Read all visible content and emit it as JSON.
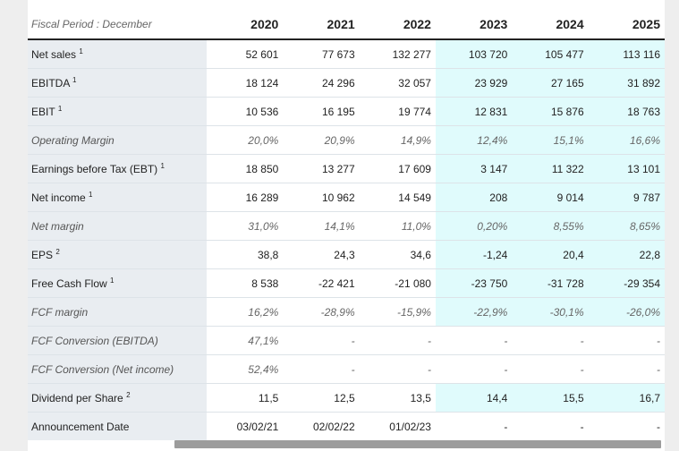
{
  "header": {
    "period_label": "Fiscal Period : December",
    "years": [
      "2020",
      "2021",
      "2022",
      "2023",
      "2024",
      "2025"
    ]
  },
  "rows": [
    {
      "label": "Net sales",
      "sup": "1",
      "italic": false,
      "est_from": 3,
      "values": [
        "52 601",
        "77 673",
        "132 277",
        "103 720",
        "105 477",
        "113 116"
      ]
    },
    {
      "label": "EBITDA",
      "sup": "1",
      "italic": false,
      "est_from": 3,
      "values": [
        "18 124",
        "24 296",
        "32 057",
        "23 929",
        "27 165",
        "31 892"
      ]
    },
    {
      "label": "EBIT",
      "sup": "1",
      "italic": false,
      "est_from": 3,
      "values": [
        "10 536",
        "16 195",
        "19 774",
        "12 831",
        "15 876",
        "18 763"
      ]
    },
    {
      "label": "Operating Margin",
      "sup": "",
      "italic": true,
      "est_from": 3,
      "values": [
        "20,0%",
        "20,9%",
        "14,9%",
        "12,4%",
        "15,1%",
        "16,6%"
      ]
    },
    {
      "label": "Earnings before Tax (EBT)",
      "sup": "1",
      "italic": false,
      "est_from": 3,
      "values": [
        "18 850",
        "13 277",
        "17 609",
        "3 147",
        "11 322",
        "13 101"
      ]
    },
    {
      "label": "Net income",
      "sup": "1",
      "italic": false,
      "est_from": 3,
      "values": [
        "16 289",
        "10 962",
        "14 549",
        "208",
        "9 014",
        "9 787"
      ]
    },
    {
      "label": "Net margin",
      "sup": "",
      "italic": true,
      "est_from": 3,
      "values": [
        "31,0%",
        "14,1%",
        "11,0%",
        "0,20%",
        "8,55%",
        "8,65%"
      ]
    },
    {
      "label": "EPS",
      "sup": "2",
      "italic": false,
      "est_from": 3,
      "values": [
        "38,8",
        "24,3",
        "34,6",
        "-1,24",
        "20,4",
        "22,8"
      ]
    },
    {
      "label": "Free Cash Flow",
      "sup": "1",
      "italic": false,
      "est_from": 3,
      "values": [
        "8 538",
        "-22 421",
        "-21 080",
        "-23 750",
        "-31 728",
        "-29 354"
      ]
    },
    {
      "label": "FCF margin",
      "sup": "",
      "italic": true,
      "est_from": 3,
      "values": [
        "16,2%",
        "-28,9%",
        "-15,9%",
        "-22,9%",
        "-30,1%",
        "-26,0%"
      ]
    },
    {
      "label": "FCF Conversion (EBITDA)",
      "sup": "",
      "italic": true,
      "est_from": 6,
      "values": [
        "47,1%",
        "-",
        "-",
        "-",
        "-",
        "-"
      ]
    },
    {
      "label": "FCF Conversion (Net income)",
      "sup": "",
      "italic": true,
      "est_from": 6,
      "values": [
        "52,4%",
        "-",
        "-",
        "-",
        "-",
        "-"
      ]
    },
    {
      "label": "Dividend per Share",
      "sup": "2",
      "italic": false,
      "est_from": 3,
      "values": [
        "11,5",
        "12,5",
        "13,5",
        "14,4",
        "15,5",
        "16,7"
      ]
    },
    {
      "label": "Announcement Date",
      "sup": "",
      "italic": false,
      "est_from": 6,
      "values": [
        "03/02/21",
        "02/02/22",
        "01/02/23",
        "-",
        "-",
        "-"
      ]
    }
  ]
}
